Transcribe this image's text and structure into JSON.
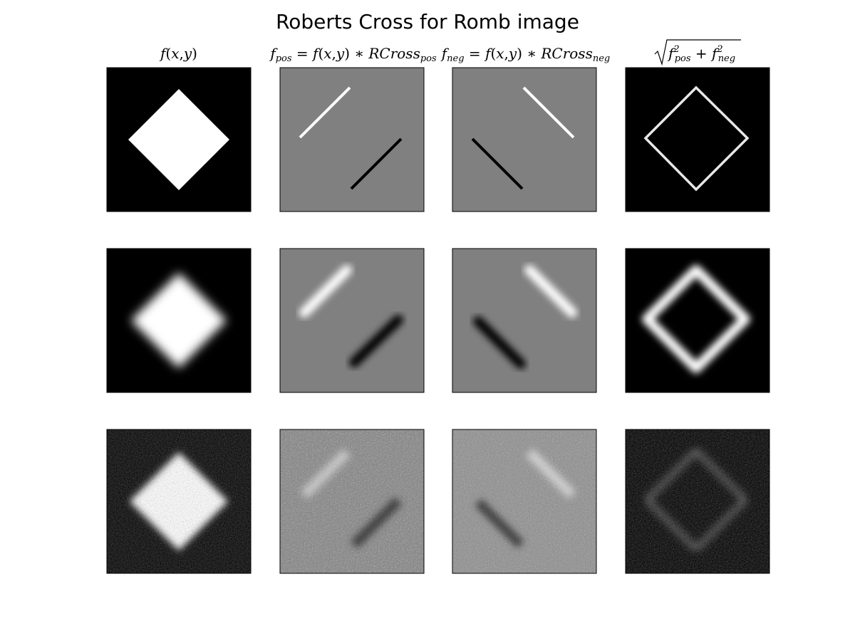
{
  "figure": {
    "title": "Roberts Cross for Romb image"
  },
  "columns": [
    {
      "key": "original",
      "label": "f(x,y)"
    },
    {
      "key": "pos",
      "label": "f_pos = f(x,y) * RCross_pos"
    },
    {
      "key": "neg",
      "label": "f_neg = f(x,y) * RCross_neg"
    },
    {
      "key": "magnitude",
      "label": "sqrt(f_pos^2 + f_neg^2)"
    }
  ],
  "rows": [
    {
      "key": "sharp",
      "variant": "clean rhombus"
    },
    {
      "key": "blurred",
      "variant": "blurred rhombus"
    },
    {
      "key": "noisy",
      "variant": "noisy rhombus"
    }
  ],
  "colors": {
    "background": "#ffffff",
    "grey_mid": "#808080",
    "white": "#ffffff",
    "black": "#000000"
  }
}
